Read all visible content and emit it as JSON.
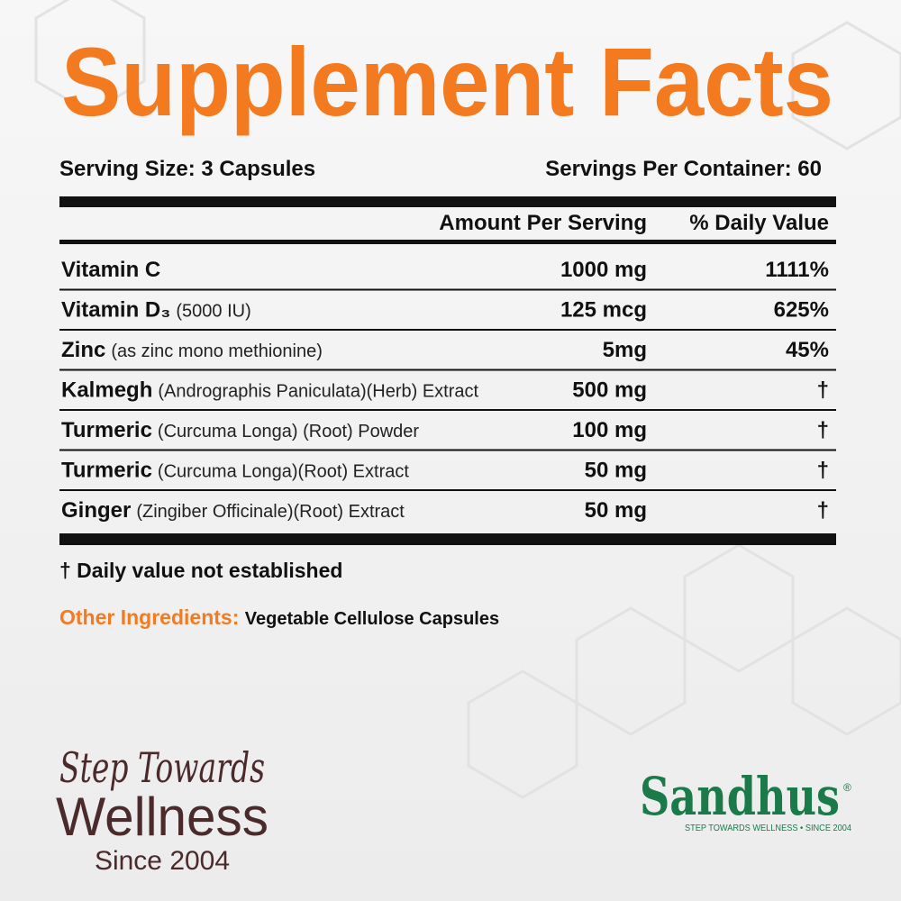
{
  "title": "Supplement Facts",
  "serving": {
    "size": "Serving Size: 3 Capsules",
    "per_container": "Servings Per Container: 60"
  },
  "table": {
    "header": {
      "amount": "Amount Per Serving",
      "daily_value": "% Daily Value"
    },
    "rows": [
      {
        "name": "Vitamin C",
        "detail": "",
        "amount": "1000 mg",
        "daily_value": "1111%"
      },
      {
        "name": "Vitamin D₃",
        "detail": "(5000 IU)",
        "amount": "125 mcg",
        "daily_value": "625%"
      },
      {
        "name": "Zinc",
        "detail": "(as zinc mono methionine)",
        "amount": "5mg",
        "daily_value": "45%"
      },
      {
        "name": "Kalmegh",
        "detail": "(Andrographis Paniculata)(Herb) Extract",
        "amount": "500 mg",
        "daily_value": "†"
      },
      {
        "name": "Turmeric",
        "detail": "(Curcuma Longa) (Root) Powder",
        "amount": "100 mg",
        "daily_value": "†"
      },
      {
        "name": "Turmeric",
        "detail": "(Curcuma Longa)(Root) Extract",
        "amount": "50 mg",
        "daily_value": "†"
      },
      {
        "name": "Ginger",
        "detail": "(Zingiber Officinale)(Root) Extract",
        "amount": "50 mg",
        "daily_value": "†"
      }
    ]
  },
  "footnote": "† Daily value not established",
  "other_ingredients": {
    "label": "Other Ingredients:",
    "value": "Vegetable Cellulose Capsules"
  },
  "tagline": {
    "script": "Step Towards",
    "main": "Wellness",
    "since": "Since 2004"
  },
  "logo": {
    "name": "Sandhus",
    "mark": "®",
    "slogan": "STEP TOWARDS WELLNESS • SINCE 2004"
  }
}
